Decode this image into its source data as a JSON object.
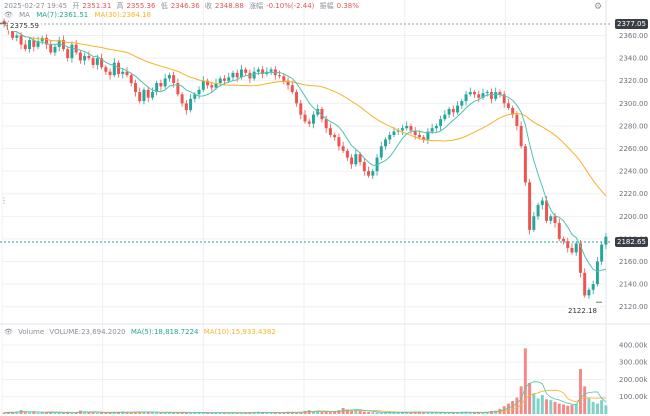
{
  "header": {
    "datetime": "2025-02-27 19:45",
    "open_label": "开",
    "open": "2351.31",
    "high_label": "高",
    "high": "2355.36",
    "low_label": "低",
    "low": "2346.36",
    "close_label": "收",
    "close": "2348.88",
    "change_label": "涨幅",
    "change": "-0.10%(-2.44)",
    "amplitude_label": "振幅",
    "amplitude": "0.38%"
  },
  "ma_legend": {
    "name": "MA",
    "ma7": "MA(7):2361.51",
    "ma30": "MA(30):2364.18"
  },
  "volume_legend": {
    "name": "Volume",
    "volume": "VOLUME:23,694.2020",
    "ma5": "MA(5):18,818.7224",
    "ma10": "MA(10):15,933.4382"
  },
  "price_tags": {
    "top": "2377.05",
    "current": "2182.65",
    "high_marker": "2375.59",
    "low_marker": "2122.18"
  },
  "colors": {
    "up": "#26a69a",
    "down": "#ef5350",
    "ma7": "#4fc3b0",
    "ma30": "#f5b324",
    "grid": "#eef0f3",
    "dashed": "#9aa0a6"
  },
  "icons": [
    "eye-icon",
    "gear-icon",
    "pin-icon"
  ],
  "chart_data": [
    {
      "type": "candlestick",
      "title": "",
      "ylim": [
        2110,
        2372
      ],
      "y_ticks": [
        2360,
        2340,
        2320,
        2300,
        2280,
        2260,
        2240,
        2220,
        2200,
        2180,
        2160,
        2140,
        2120
      ],
      "close_series": [
        2370,
        2365,
        2358,
        2360,
        2352,
        2348,
        2356,
        2350,
        2355,
        2358,
        2352,
        2345,
        2350,
        2356,
        2348,
        2340,
        2352,
        2345,
        2338,
        2342,
        2340,
        2334,
        2340,
        2332,
        2328,
        2325,
        2336,
        2326,
        2328,
        2325,
        2318,
        2310,
        2302,
        2312,
        2305,
        2310,
        2318,
        2315,
        2322,
        2325,
        2318,
        2308,
        2300,
        2294,
        2304,
        2308,
        2312,
        2320,
        2316,
        2314,
        2318,
        2322,
        2320,
        2323,
        2327,
        2323,
        2330,
        2327,
        2322,
        2328,
        2330,
        2326,
        2328,
        2330,
        2325,
        2324,
        2320,
        2316,
        2310,
        2300,
        2290,
        2284,
        2282,
        2290,
        2295,
        2286,
        2278,
        2272,
        2270,
        2262,
        2258,
        2252,
        2246,
        2255,
        2248,
        2240,
        2236,
        2240,
        2252,
        2262,
        2268,
        2272,
        2275,
        2276,
        2278,
        2280,
        2276,
        2272,
        2270,
        2268,
        2275,
        2278,
        2280,
        2286,
        2290,
        2295,
        2292,
        2298,
        2302,
        2308,
        2310,
        2308,
        2305,
        2309,
        2310,
        2304,
        2310,
        2308,
        2300,
        2296,
        2290,
        2280,
        2262,
        2230,
        2188,
        2200,
        2210,
        2214,
        2196,
        2200,
        2194,
        2180,
        2178,
        2172,
        2168,
        2176,
        2150,
        2130,
        2135,
        2140,
        2160,
        2175,
        2182
      ],
      "ma7_label": "MA(7)",
      "ma30_label": "MA(30)"
    },
    {
      "type": "bar",
      "title": "",
      "ylim": [
        0,
        440000
      ],
      "y_ticks": [
        400000,
        300000,
        200000,
        100000
      ],
      "y_tick_labels": [
        "400.00k",
        "300.00k",
        "200.00k",
        "100.00k"
      ],
      "values": [
        8000,
        12000,
        9000,
        15000,
        22000,
        10000,
        8000,
        12000,
        7000,
        9000,
        11000,
        14000,
        9000,
        8000,
        7000,
        12000,
        6000,
        9000,
        20000,
        15000,
        12000,
        8000,
        7000,
        9000,
        6000,
        8000,
        10000,
        12000,
        14000,
        11000,
        9000,
        13000,
        15000,
        12000,
        10000,
        9000,
        8000,
        7000,
        12000,
        10000,
        9000,
        8000,
        11000,
        10000,
        8000,
        7000,
        9000,
        7000,
        6000,
        7000,
        8000,
        9000,
        7000,
        6000,
        8000,
        7000,
        6000,
        9000,
        10000,
        11000,
        12000,
        8000,
        9000,
        7000,
        8000,
        9000,
        10000,
        13000,
        9000,
        8000,
        12000,
        18000,
        22000,
        16000,
        20000,
        12000,
        14000,
        10000,
        15000,
        22000,
        35000,
        26000,
        18000,
        25000,
        20000,
        14000,
        12000,
        10000,
        9000,
        8000,
        8000,
        10000,
        9000,
        11000,
        12000,
        9000,
        10000,
        14000,
        12000,
        9000,
        10000,
        9000,
        8000,
        9000,
        7000,
        11000,
        10000,
        9000,
        13000,
        9000,
        8000,
        10000,
        9000,
        11000,
        12000,
        18000,
        20000,
        30000,
        45000,
        60000,
        75000,
        95000,
        160000,
        380000,
        180000,
        120000,
        90000,
        110000,
        85000,
        80000,
        70000,
        60000,
        55000,
        48000,
        52000,
        58000,
        260000,
        160000,
        90000,
        70000,
        60000,
        80000,
        50000
      ]
    }
  ]
}
